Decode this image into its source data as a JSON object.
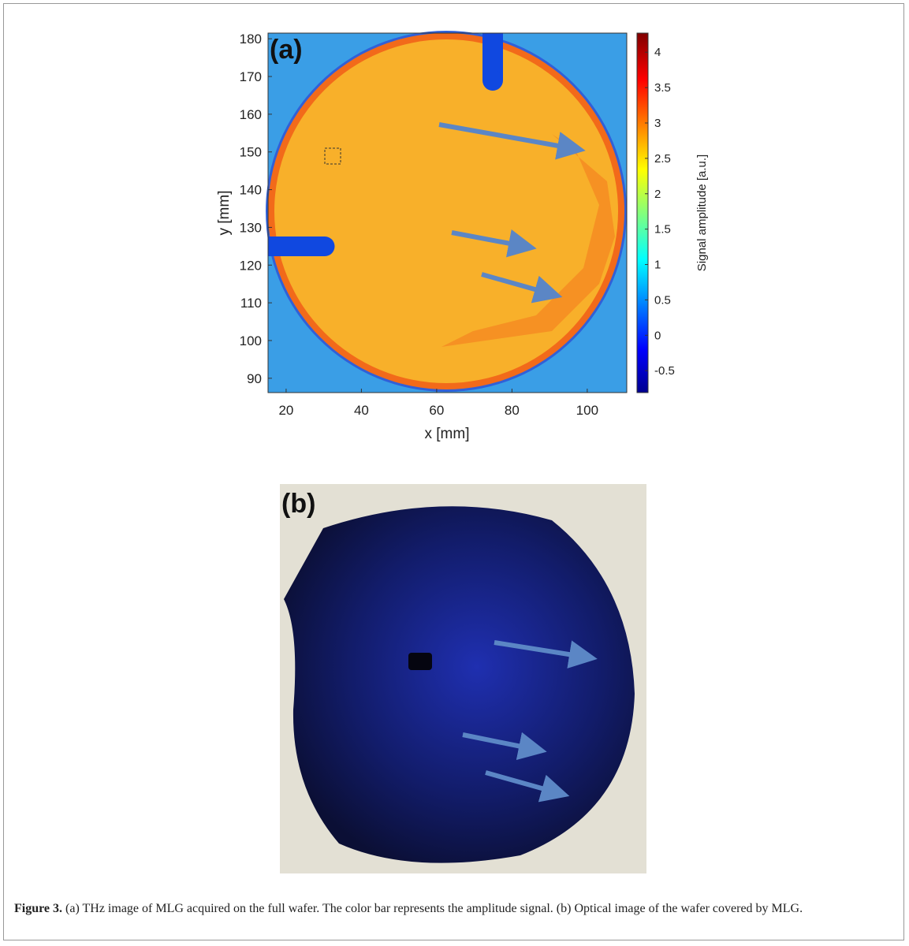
{
  "panel_a": {
    "label": "(a)",
    "xlabel": "x [mm]",
    "ylabel": "y [mm]",
    "xlim": [
      15.2,
      110.5
    ],
    "ylim": [
      86.2,
      181.5
    ],
    "xticks": [
      20,
      40,
      60,
      80,
      100
    ],
    "yticks": [
      90,
      100,
      110,
      120,
      130,
      140,
      150,
      160,
      170,
      180
    ],
    "colorbar": {
      "label": "Signal amplitude [a.u.]",
      "lim": [
        -0.81,
        4.27
      ],
      "ticks": [
        -0.5,
        0,
        0.5,
        1,
        1.5,
        2,
        2.5,
        3,
        3.5,
        4
      ]
    }
  },
  "panel_b": {
    "label": "(b)"
  },
  "caption": {
    "label": "Figure 3.",
    "text": "(a) THz image of MLG acquired on the full wafer. The color bar represents the amplitude signal. (b) Optical image of the wafer covered by MLG."
  }
}
